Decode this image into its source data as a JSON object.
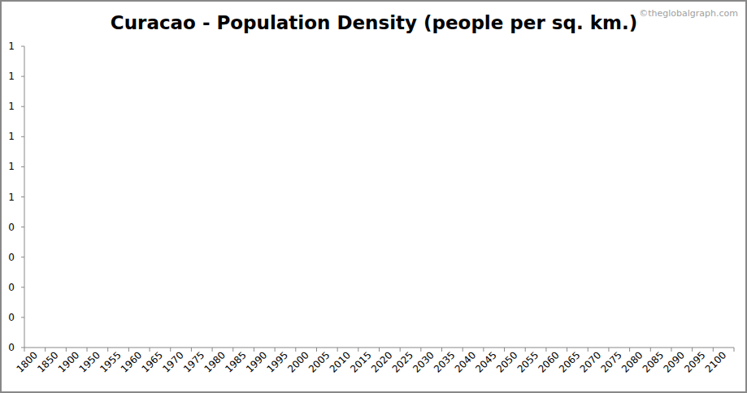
{
  "chart_data": {
    "type": "line",
    "title": "Curacao - Population Density (people per sq. km.)",
    "source": "©theglobalgraph.com",
    "categories": [
      "1800",
      "1850",
      "1900",
      "1950",
      "1955",
      "1960",
      "1965",
      "1970",
      "1975",
      "1980",
      "1985",
      "1990",
      "1995",
      "2000",
      "2005",
      "2010",
      "2015",
      "2020",
      "2025",
      "2030",
      "2035",
      "2040",
      "2045",
      "2050",
      "2055",
      "2060",
      "2065",
      "2070",
      "2075",
      "2080",
      "2085",
      "2090",
      "2095",
      "2100"
    ],
    "series": [
      {
        "name": "Population Density",
        "values": [
          null,
          null,
          null,
          null,
          null,
          null,
          null,
          null,
          null,
          null,
          null,
          null,
          null,
          null,
          null,
          null,
          null,
          null,
          null,
          null,
          null,
          null,
          null,
          null,
          null,
          null,
          null,
          null,
          null,
          null,
          null,
          null,
          null,
          null
        ]
      }
    ],
    "ylim": [
      0,
      1
    ],
    "yticks": [
      0,
      {
        "value": 0.1,
        "label": "0"
      },
      {
        "value": 0.2,
        "label": "0"
      },
      {
        "value": 0.3,
        "label": "0"
      },
      {
        "value": 0.4,
        "label": "0"
      },
      {
        "value": 0.5,
        "label": "1"
      },
      {
        "value": 0.6,
        "label": "1"
      },
      {
        "value": 0.7,
        "label": "1"
      },
      {
        "value": 0.8,
        "label": "1"
      },
      {
        "value": 0.9,
        "label": "1"
      },
      1
    ],
    "grid": false
  }
}
